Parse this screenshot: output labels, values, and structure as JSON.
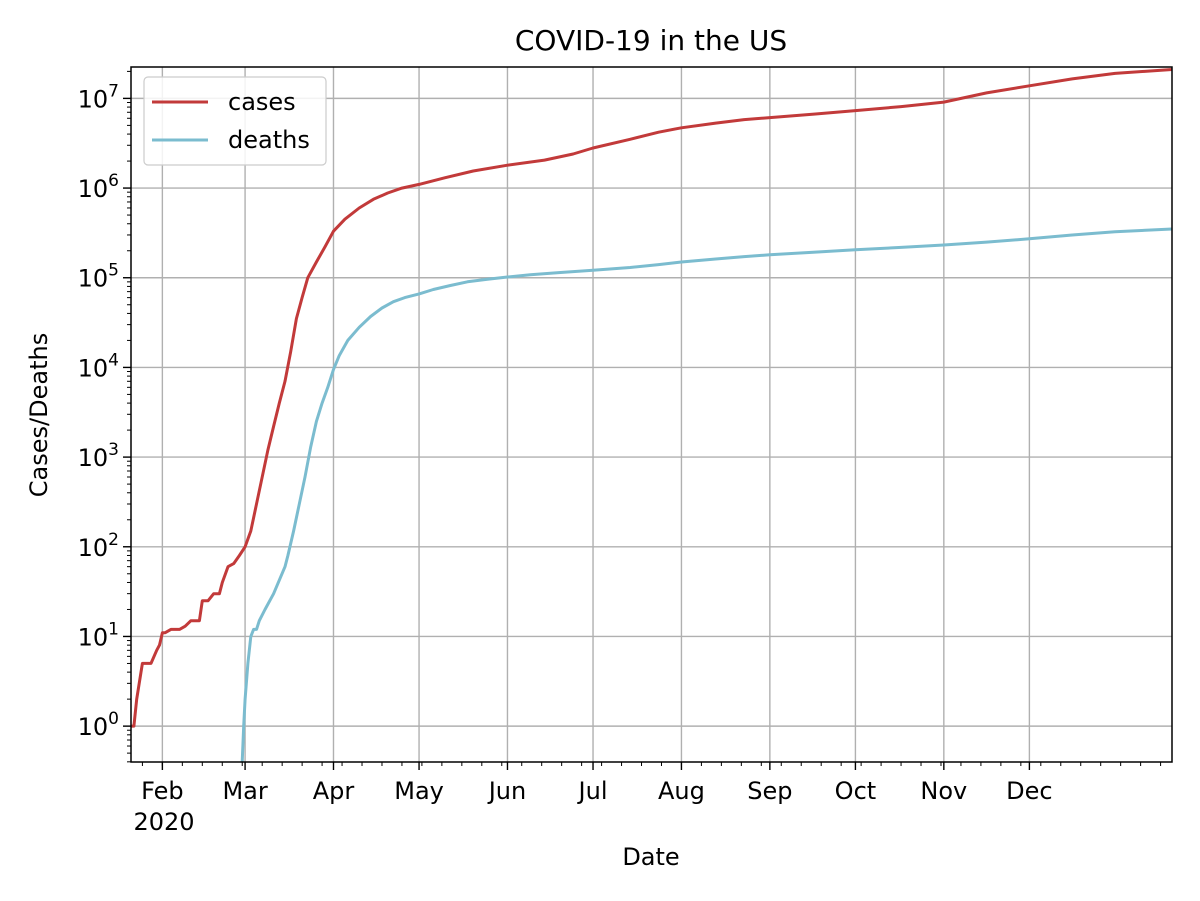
{
  "chart_data": {
    "type": "line",
    "title": "COVID-19 in the US",
    "xlabel": "Date",
    "ylabel": "Cases/Deaths",
    "yscale": "log",
    "ylim_exp": [
      -0.4,
      7.35
    ],
    "xlim_day": [
      0,
      365
    ],
    "grid": true,
    "legend_position": "top-left",
    "x_ticks": [
      {
        "label": "Feb",
        "day": 11
      },
      {
        "label": "Mar",
        "day": 40
      },
      {
        "label": "Apr",
        "day": 71
      },
      {
        "label": "May",
        "day": 101
      },
      {
        "label": "Jun",
        "day": 132
      },
      {
        "label": "Jul",
        "day": 162
      },
      {
        "label": "Aug",
        "day": 193
      },
      {
        "label": "Sep",
        "day": 224
      },
      {
        "label": "Oct",
        "day": 254
      },
      {
        "label": "Nov",
        "day": 285
      },
      {
        "label": "Dec",
        "day": 315
      }
    ],
    "x_year_label": "2020",
    "y_ticks": [
      {
        "base": "10",
        "exp": "0",
        "value": 0
      },
      {
        "base": "10",
        "exp": "1",
        "value": 1
      },
      {
        "base": "10",
        "exp": "2",
        "value": 2
      },
      {
        "base": "10",
        "exp": "3",
        "value": 3
      },
      {
        "base": "10",
        "exp": "4",
        "value": 4
      },
      {
        "base": "10",
        "exp": "5",
        "value": 5
      },
      {
        "base": "10",
        "exp": "6",
        "value": 6
      },
      {
        "base": "10",
        "exp": "7",
        "value": 7
      }
    ],
    "series": [
      {
        "name": "cases",
        "color": "#c23a3a",
        "points": [
          [
            0,
            1
          ],
          [
            1,
            1
          ],
          [
            2,
            2
          ],
          [
            4,
            5
          ],
          [
            7,
            5
          ],
          [
            9,
            7
          ],
          [
            10,
            8
          ],
          [
            11,
            11
          ],
          [
            12,
            11
          ],
          [
            14,
            12
          ],
          [
            17,
            12
          ],
          [
            19,
            13
          ],
          [
            21,
            15
          ],
          [
            24,
            15
          ],
          [
            25,
            25
          ],
          [
            27,
            25
          ],
          [
            29,
            30
          ],
          [
            31,
            30
          ],
          [
            32,
            40
          ],
          [
            34,
            60
          ],
          [
            36,
            65
          ],
          [
            38,
            80
          ],
          [
            40,
            100
          ],
          [
            42,
            150
          ],
          [
            44,
            300
          ],
          [
            46,
            600
          ],
          [
            48,
            1200
          ],
          [
            50,
            2200
          ],
          [
            52,
            4000
          ],
          [
            54,
            7000
          ],
          [
            56,
            15000
          ],
          [
            58,
            35000
          ],
          [
            60,
            60000
          ],
          [
            62,
            100000
          ],
          [
            65,
            150000
          ],
          [
            68,
            220000
          ],
          [
            71,
            330000
          ],
          [
            75,
            450000
          ],
          [
            80,
            600000
          ],
          [
            85,
            750000
          ],
          [
            90,
            880000
          ],
          [
            95,
            1000000
          ],
          [
            101,
            1100000
          ],
          [
            110,
            1300000
          ],
          [
            120,
            1550000
          ],
          [
            132,
            1800000
          ],
          [
            145,
            2050000
          ],
          [
            155,
            2400000
          ],
          [
            162,
            2800000
          ],
          [
            175,
            3500000
          ],
          [
            185,
            4200000
          ],
          [
            193,
            4700000
          ],
          [
            205,
            5300000
          ],
          [
            215,
            5800000
          ],
          [
            224,
            6100000
          ],
          [
            240,
            6700000
          ],
          [
            254,
            7300000
          ],
          [
            270,
            8100000
          ],
          [
            285,
            9100000
          ],
          [
            300,
            11500000
          ],
          [
            315,
            13800000
          ],
          [
            330,
            16500000
          ],
          [
            345,
            19000000
          ],
          [
            365,
            21000000
          ]
        ]
      },
      {
        "name": "deaths",
        "color": "#7bbccf",
        "points": [
          [
            39,
            0.4
          ],
          [
            39.5,
            1
          ],
          [
            40,
            2
          ],
          [
            41,
            5
          ],
          [
            42,
            10
          ],
          [
            43,
            12
          ],
          [
            44,
            12
          ],
          [
            45,
            15
          ],
          [
            47,
            20
          ],
          [
            50,
            30
          ],
          [
            54,
            60
          ],
          [
            55,
            80
          ],
          [
            57,
            150
          ],
          [
            59,
            300
          ],
          [
            61,
            600
          ],
          [
            63,
            1300
          ],
          [
            65,
            2500
          ],
          [
            67,
            4000
          ],
          [
            69,
            6000
          ],
          [
            71,
            9500
          ],
          [
            73,
            13500
          ],
          [
            76,
            20000
          ],
          [
            80,
            28000
          ],
          [
            84,
            37000
          ],
          [
            88,
            46000
          ],
          [
            92,
            54000
          ],
          [
            96,
            60000
          ],
          [
            101,
            66000
          ],
          [
            106,
            74000
          ],
          [
            112,
            82000
          ],
          [
            118,
            90000
          ],
          [
            125,
            96000
          ],
          [
            132,
            102000
          ],
          [
            140,
            108000
          ],
          [
            150,
            114000
          ],
          [
            162,
            121000
          ],
          [
            175,
            130000
          ],
          [
            185,
            140000
          ],
          [
            193,
            150000
          ],
          [
            205,
            162000
          ],
          [
            215,
            172000
          ],
          [
            224,
            180000
          ],
          [
            240,
            193000
          ],
          [
            254,
            205000
          ],
          [
            270,
            218000
          ],
          [
            285,
            232000
          ],
          [
            300,
            250000
          ],
          [
            315,
            272000
          ],
          [
            330,
            300000
          ],
          [
            345,
            325000
          ],
          [
            365,
            350000
          ]
        ]
      }
    ]
  }
}
